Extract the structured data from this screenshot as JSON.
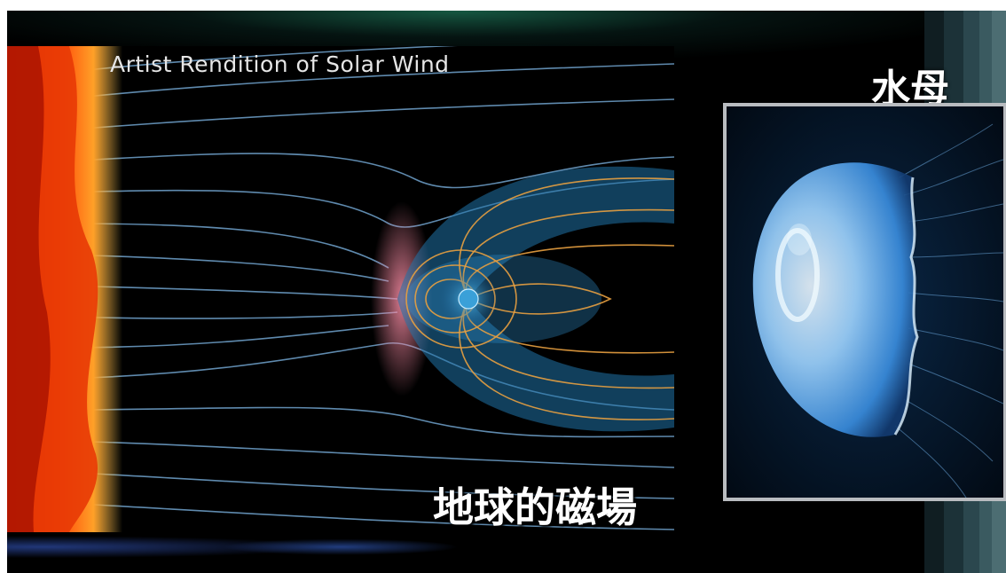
{
  "slide": {
    "title": "Artist Rendition of Solar Wind",
    "earth_caption": "地球的磁場",
    "jelly_caption": "水母"
  },
  "images": {
    "solar_wind": "solar-wind-magnetosphere-illustration",
    "jellyfish": "moon-jellyfish-photo"
  },
  "colors": {
    "sun": "#ff5a0a",
    "field_lines_blue": "#8fd0ff",
    "field_lines_orange": "#e8a040",
    "frame": "#b9bcc0"
  }
}
